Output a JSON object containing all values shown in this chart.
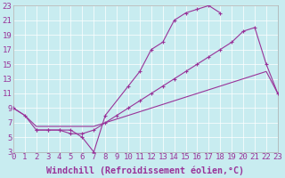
{
  "background_color": "#c8ecf0",
  "line_color": "#993399",
  "grid_color": "#ffffff",
  "xlabel": "Windchill (Refroidissement éolien,°C)",
  "xlim": [
    0,
    23
  ],
  "ylim": [
    3,
    23
  ],
  "xticks": [
    0,
    1,
    2,
    3,
    4,
    5,
    6,
    7,
    8,
    9,
    10,
    11,
    12,
    13,
    14,
    15,
    16,
    17,
    18,
    19,
    20,
    21,
    22,
    23
  ],
  "yticks": [
    3,
    5,
    7,
    9,
    11,
    13,
    15,
    17,
    19,
    21,
    23
  ],
  "font_name": "monospace",
  "tick_fontsize": 6.5,
  "label_fontsize": 7.2,
  "series1_x": [
    0,
    1,
    2,
    3,
    4,
    5,
    6,
    7,
    8,
    10,
    11,
    12,
    13,
    14,
    15,
    16,
    17,
    18
  ],
  "series1_y": [
    9,
    8,
    6,
    6,
    6,
    6,
    5,
    3,
    8,
    12,
    14,
    17,
    18,
    21,
    22,
    22.5,
    23,
    22
  ],
  "series2_x": [
    2,
    3,
    4,
    5,
    6,
    7,
    8,
    9,
    10,
    11,
    12,
    13,
    14,
    15,
    16,
    17,
    18,
    19,
    20,
    21,
    22,
    23
  ],
  "series2_y": [
    6,
    6,
    6,
    5.5,
    5.5,
    6,
    7,
    8,
    9,
    10,
    11,
    12,
    13,
    14,
    15,
    16,
    17,
    18,
    19.5,
    20,
    15,
    11
  ],
  "series3_x": [
    0,
    1,
    2,
    3,
    4,
    5,
    6,
    7,
    8,
    9,
    10,
    11,
    12,
    13,
    14,
    15,
    16,
    17,
    18,
    19,
    20,
    21,
    22,
    23
  ],
  "series3_y": [
    9,
    8,
    6.5,
    6.5,
    6.5,
    6.5,
    6.5,
    6.5,
    7,
    7.5,
    8,
    8.5,
    9,
    9.5,
    10,
    10.5,
    11,
    11.5,
    12,
    12.5,
    13,
    13.5,
    14,
    11
  ]
}
